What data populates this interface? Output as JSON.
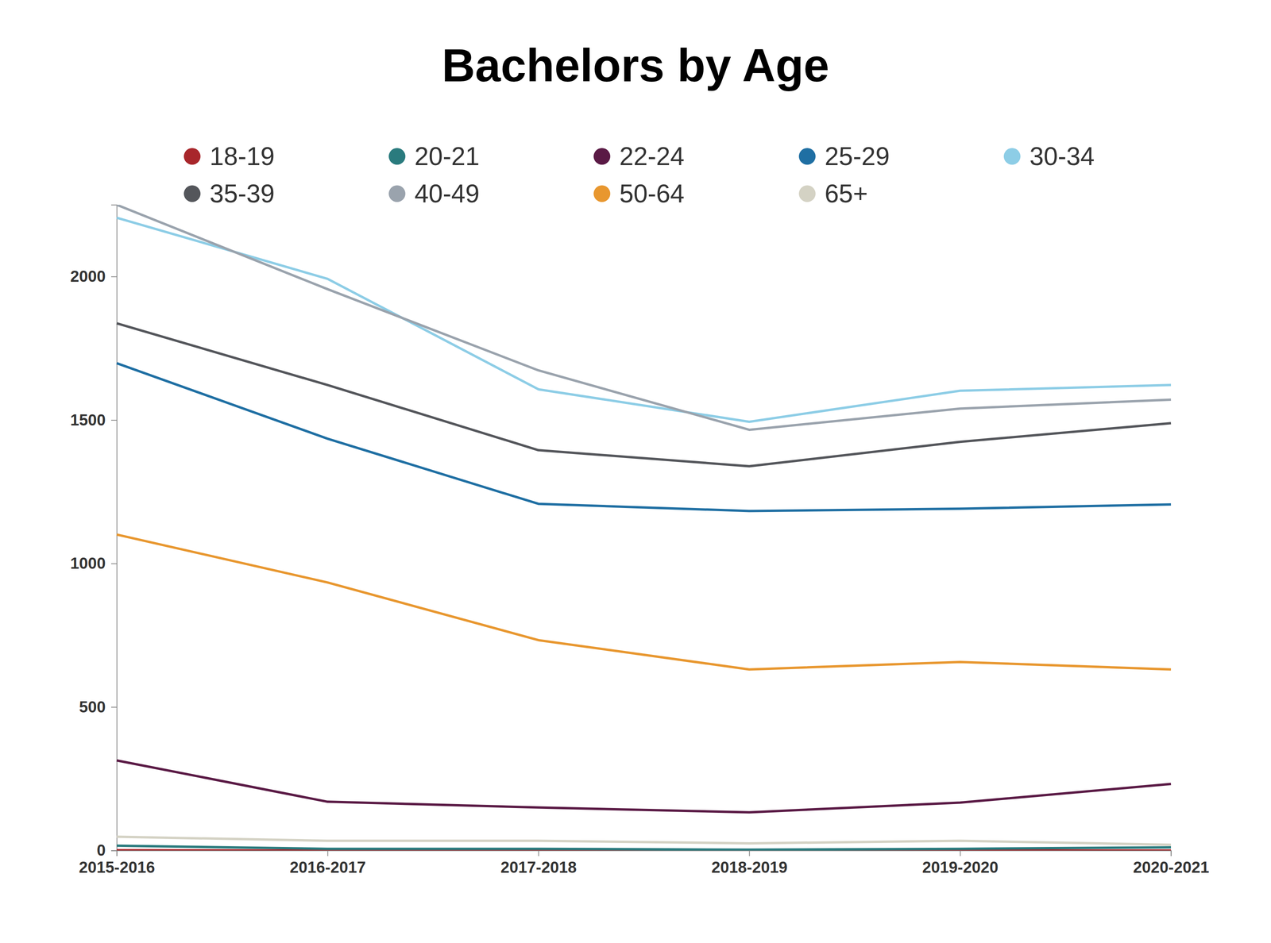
{
  "chart_data": {
    "type": "line",
    "title": "Bachelors by Age",
    "categories": [
      "2015-2016",
      "2016-2017",
      "2017-2018",
      "2018-2019",
      "2019-2020",
      "2020-2021"
    ],
    "series": [
      {
        "name": "18-19",
        "color": "#a8262b",
        "values": [
          1,
          0,
          0,
          0,
          0,
          0
        ]
      },
      {
        "name": "20-21",
        "color": "#2a7b7e",
        "values": [
          17,
          6,
          6,
          3,
          6,
          11
        ]
      },
      {
        "name": "22-24",
        "color": "#5a1a45",
        "values": [
          314,
          170,
          150,
          133,
          167,
          232
        ]
      },
      {
        "name": "25-29",
        "color": "#1f6fa3",
        "values": [
          1698,
          1435,
          1208,
          1183,
          1191,
          1206
        ]
      },
      {
        "name": "30-34",
        "color": "#8dcde6",
        "values": [
          2205,
          1992,
          1607,
          1494,
          1602,
          1622
        ]
      },
      {
        "name": "35-39",
        "color": "#54565b",
        "values": [
          1837,
          1622,
          1395,
          1339,
          1424,
          1489
        ]
      },
      {
        "name": "40-49",
        "color": "#9aa3ad",
        "values": [
          2250,
          1956,
          1673,
          1466,
          1540,
          1571
        ]
      },
      {
        "name": "50-64",
        "color": "#e8972f",
        "values": [
          1101,
          934,
          733,
          631,
          657,
          631
        ]
      },
      {
        "name": "65+",
        "color": "#d4d2c4",
        "values": [
          48,
          34,
          34,
          25,
          34,
          20
        ]
      }
    ],
    "ylim": [
      0,
      2250
    ],
    "yticks": [
      0,
      500,
      1000,
      1500,
      2000
    ],
    "grid": false,
    "legend": "top"
  }
}
